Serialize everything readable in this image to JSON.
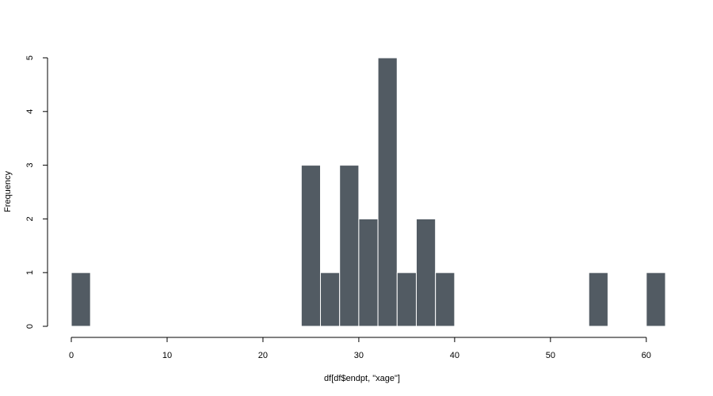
{
  "chart_data": {
    "type": "bar",
    "title": "",
    "xlabel": "df[df$endpt, \"xage\"]",
    "ylabel": "Frequency",
    "bin_width": 2,
    "bins": [
      {
        "start": 0,
        "count": 1
      },
      {
        "start": 24,
        "count": 3
      },
      {
        "start": 26,
        "count": 1
      },
      {
        "start": 28,
        "count": 3
      },
      {
        "start": 30,
        "count": 2
      },
      {
        "start": 32,
        "count": 5
      },
      {
        "start": 34,
        "count": 1
      },
      {
        "start": 36,
        "count": 2
      },
      {
        "start": 38,
        "count": 1
      },
      {
        "start": 54,
        "count": 1
      },
      {
        "start": 60,
        "count": 1
      }
    ],
    "xlim": [
      0,
      62
    ],
    "ylim": [
      0,
      5
    ],
    "x_ticks": [
      "0",
      "10",
      "20",
      "30",
      "40",
      "50",
      "60"
    ],
    "y_ticks": [
      "0",
      "1",
      "2",
      "3",
      "4",
      "5"
    ],
    "grid": false,
    "bar_color": "#525b63",
    "bar_border_color": "#ffffff"
  }
}
